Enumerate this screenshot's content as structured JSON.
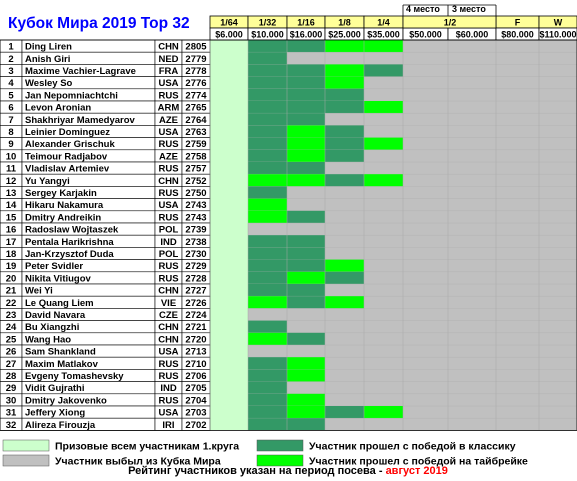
{
  "title": "Кубок Мира 2019 Top 32",
  "colors": {
    "prize_all": "#ccffcc",
    "eliminated": "#c0c0c0",
    "won_classic": "#339966",
    "won_tiebreak": "#00ff00",
    "title_text": "#0000ff",
    "header_fill": "#ffff99",
    "note_red": "#ff0000"
  },
  "rounds": [
    {
      "name": "1/64",
      "prize": "$6.000"
    },
    {
      "name": "1/32",
      "prize": "$10.000"
    },
    {
      "name": "1/16",
      "prize": "$16.000"
    },
    {
      "name": "1/8",
      "prize": "$25.000"
    },
    {
      "name": "1/4",
      "prize": "$35.000"
    },
    {
      "name": "",
      "prize": "$50.000"
    },
    {
      "name": "",
      "prize": "$60.000"
    },
    {
      "name": "F",
      "prize": "$80.000"
    },
    {
      "name": "W",
      "prize": "$110.000"
    }
  ],
  "semi_header": {
    "third": "4 место",
    "fourth": "3 место",
    "name": "1/2"
  },
  "players": [
    {
      "n": "1",
      "name": "Ding Liren",
      "fed": "CHN",
      "rating": "2805",
      "res": [
        "L",
        "C",
        "C",
        "T",
        "T"
      ]
    },
    {
      "n": "2",
      "name": "Anish Giri",
      "fed": "NED",
      "rating": "2779",
      "res": [
        "L",
        "C"
      ]
    },
    {
      "n": "3",
      "name": "Maxime Vachier-Lagrave",
      "fed": "FRA",
      "rating": "2778",
      "res": [
        "L",
        "C",
        "C",
        "T",
        "C"
      ]
    },
    {
      "n": "4",
      "name": "Wesley So",
      "fed": "USA",
      "rating": "2776",
      "res": [
        "L",
        "C",
        "C",
        "T"
      ]
    },
    {
      "n": "5",
      "name": "Jan Nepomniachtchi",
      "fed": "RUS",
      "rating": "2774",
      "res": [
        "L",
        "C",
        "C",
        "C"
      ]
    },
    {
      "n": "6",
      "name": "Levon Aronian",
      "fed": "ARM",
      "rating": "2765",
      "res": [
        "L",
        "C",
        "C",
        "C",
        "T"
      ]
    },
    {
      "n": "7",
      "name": "Shakhriyar Mamedyarov",
      "fed": "AZE",
      "rating": "2764",
      "res": [
        "L",
        "C",
        "C"
      ]
    },
    {
      "n": "8",
      "name": "Leinier Dominguez",
      "fed": "USA",
      "rating": "2763",
      "res": [
        "L",
        "C",
        "T",
        "C"
      ]
    },
    {
      "n": "9",
      "name": "Alexander Grischuk",
      "fed": "RUS",
      "rating": "2759",
      "res": [
        "L",
        "C",
        "T",
        "C",
        "T"
      ]
    },
    {
      "n": "10",
      "name": "Teimour Radjabov",
      "fed": "AZE",
      "rating": "2758",
      "res": [
        "L",
        "C",
        "T",
        "C"
      ]
    },
    {
      "n": "11",
      "name": "Vladislav Artemiev",
      "fed": "RUS",
      "rating": "2757",
      "res": [
        "L",
        "C",
        "C"
      ]
    },
    {
      "n": "12",
      "name": "Yu Yangyi",
      "fed": "CHN",
      "rating": "2752",
      "res": [
        "L",
        "T",
        "T",
        "C",
        "T"
      ]
    },
    {
      "n": "13",
      "name": "Sergey Karjakin",
      "fed": "RUS",
      "rating": "2750",
      "res": [
        "L",
        "C"
      ]
    },
    {
      "n": "14",
      "name": "Hikaru Nakamura",
      "fed": "USA",
      "rating": "2743",
      "res": [
        "L",
        "T"
      ]
    },
    {
      "n": "15",
      "name": "Dmitry Andreikin",
      "fed": "RUS",
      "rating": "2743",
      "res": [
        "L",
        "T",
        "C"
      ]
    },
    {
      "n": "16",
      "name": "Radoslaw Wojtaszek",
      "fed": "POL",
      "rating": "2739",
      "res": [
        "L"
      ]
    },
    {
      "n": "17",
      "name": "Pentala Harikrishna",
      "fed": "IND",
      "rating": "2738",
      "res": [
        "L",
        "C",
        "C"
      ]
    },
    {
      "n": "18",
      "name": "Jan-Krzysztof Duda",
      "fed": "POL",
      "rating": "2730",
      "res": [
        "L",
        "C",
        "C"
      ]
    },
    {
      "n": "19",
      "name": "Peter Svidler",
      "fed": "RUS",
      "rating": "2729",
      "res": [
        "L",
        "C",
        "C",
        "T"
      ]
    },
    {
      "n": "20",
      "name": "Nikita Vitiugov",
      "fed": "RUS",
      "rating": "2728",
      "res": [
        "L",
        "C",
        "T",
        "C"
      ]
    },
    {
      "n": "21",
      "name": "Wei Yi",
      "fed": "CHN",
      "rating": "2727",
      "res": [
        "L",
        "C",
        "C"
      ]
    },
    {
      "n": "22",
      "name": "Le Quang Liem",
      "fed": "VIE",
      "rating": "2726",
      "res": [
        "L",
        "T",
        "C",
        "T"
      ]
    },
    {
      "n": "23",
      "name": "David Navara",
      "fed": "CZE",
      "rating": "2724",
      "res": [
        "L"
      ]
    },
    {
      "n": "24",
      "name": "Bu Xiangzhi",
      "fed": "CHN",
      "rating": "2721",
      "res": [
        "L",
        "C"
      ]
    },
    {
      "n": "25",
      "name": "Wang Hao",
      "fed": "CHN",
      "rating": "2720",
      "res": [
        "L",
        "T",
        "C"
      ]
    },
    {
      "n": "26",
      "name": "Sam Shankland",
      "fed": "USA",
      "rating": "2713",
      "res": [
        "L"
      ]
    },
    {
      "n": "27",
      "name": "Maxim Matlakov",
      "fed": "RUS",
      "rating": "2710",
      "res": [
        "L",
        "C",
        "T"
      ]
    },
    {
      "n": "28",
      "name": "Evgeny Tomashevsky",
      "fed": "RUS",
      "rating": "2706",
      "res": [
        "L",
        "C",
        "T"
      ]
    },
    {
      "n": "29",
      "name": "Vidit Gujrathi",
      "fed": "IND",
      "rating": "2705",
      "res": [
        "L",
        "C"
      ]
    },
    {
      "n": "30",
      "name": "Dmitry Jakovenko",
      "fed": "RUS",
      "rating": "2704",
      "res": [
        "L",
        "C",
        "T"
      ]
    },
    {
      "n": "31",
      "name": "Jeffery Xiong",
      "fed": "USA",
      "rating": "2703",
      "res": [
        "L",
        "C",
        "T",
        "C",
        "T"
      ]
    },
    {
      "n": "32",
      "name": "Alireza Firouzja",
      "fed": "IRI",
      "rating": "2702",
      "res": [
        "L",
        "C",
        "C"
      ]
    }
  ],
  "legend": {
    "prize_all": "Призовые всем участникам 1.круга",
    "eliminated": "Участник выбыл из Кубка Мира",
    "won_classic": "Участник прошел с победой в классику",
    "won_tiebreak": "Участник прошел с победой на тайбрейке"
  },
  "note": {
    "text": "Рейтинг участников указан на период посева - ",
    "date": "август 2019"
  }
}
